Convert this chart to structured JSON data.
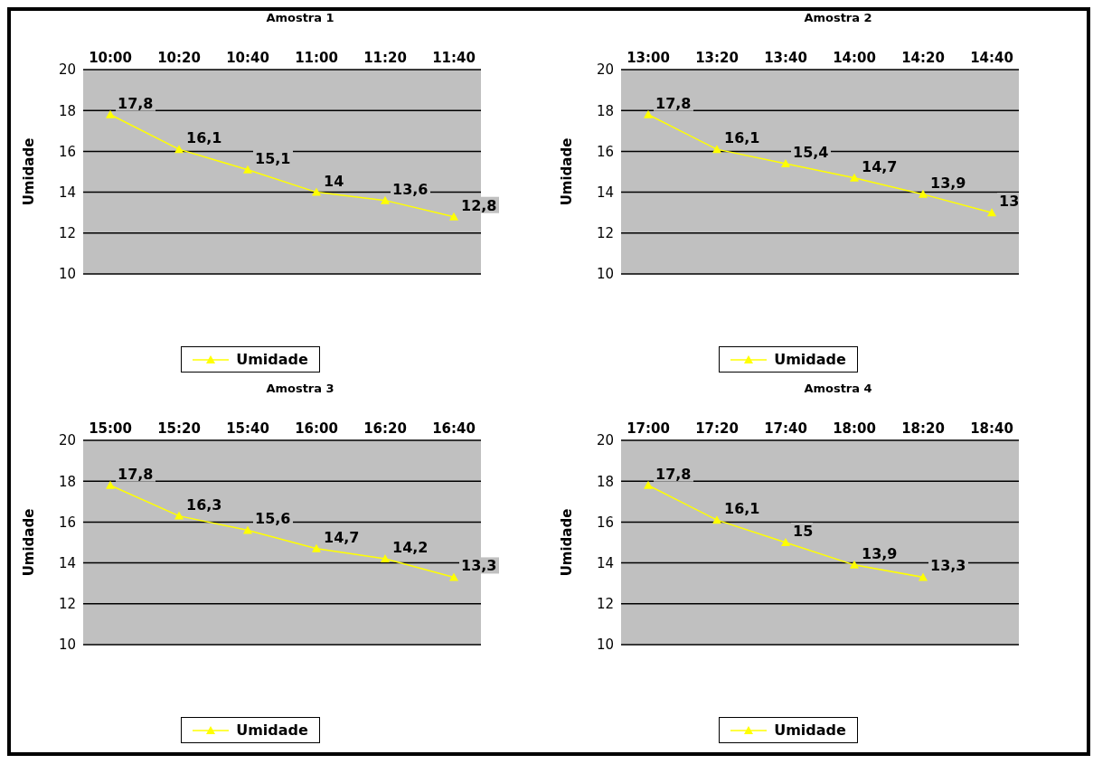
{
  "chart_data": [
    {
      "type": "line",
      "title": "Amostra 1",
      "ylabel": "Umidade",
      "categories": [
        "10:00",
        "10:20",
        "10:40",
        "11:00",
        "11:20",
        "11:40"
      ],
      "series": [
        {
          "name": "Umidade",
          "color": "#ffff00",
          "values": [
            17.8,
            16.1,
            15.1,
            14,
            13.6,
            12.8
          ],
          "value_labels": [
            "17,8",
            "16,1",
            "15,1",
            "14",
            "13,6",
            "12,8"
          ]
        }
      ],
      "ylim": [
        10,
        20
      ],
      "yticks": [
        10,
        12,
        14,
        16,
        18,
        20
      ],
      "grid": "y",
      "legend": "bottom",
      "marker": "triangle"
    },
    {
      "type": "line",
      "title": "Amostra 2",
      "ylabel": "Umidade",
      "categories": [
        "13:00",
        "13:20",
        "13:40",
        "14:00",
        "14:20",
        "14:40"
      ],
      "series": [
        {
          "name": "Umidade",
          "color": "#ffff00",
          "values": [
            17.8,
            16.1,
            15.4,
            14.7,
            13.9,
            13
          ],
          "value_labels": [
            "17,8",
            "16,1",
            "15,4",
            "14,7",
            "13,9",
            "13"
          ]
        }
      ],
      "ylim": [
        10,
        20
      ],
      "yticks": [
        10,
        12,
        14,
        16,
        18,
        20
      ],
      "grid": "y",
      "legend": "bottom",
      "marker": "triangle"
    },
    {
      "type": "line",
      "title": "Amostra 3",
      "ylabel": "Umidade",
      "categories": [
        "15:00",
        "15:20",
        "15:40",
        "16:00",
        "16:20",
        "16:40"
      ],
      "series": [
        {
          "name": "Umidade",
          "color": "#ffff00",
          "values": [
            17.8,
            16.3,
            15.6,
            14.7,
            14.2,
            13.3
          ],
          "value_labels": [
            "17,8",
            "16,3",
            "15,6",
            "14,7",
            "14,2",
            "13,3"
          ]
        }
      ],
      "ylim": [
        10,
        20
      ],
      "yticks": [
        10,
        12,
        14,
        16,
        18,
        20
      ],
      "grid": "y",
      "legend": "bottom",
      "marker": "triangle"
    },
    {
      "type": "line",
      "title": "Amostra 4",
      "ylabel": "Umidade",
      "categories": [
        "17:00",
        "17:20",
        "17:40",
        "18:00",
        "18:20",
        "18:40"
      ],
      "series": [
        {
          "name": "Umidade",
          "color": "#ffff00",
          "values": [
            17.8,
            16.1,
            15,
            13.9,
            13.3,
            null
          ],
          "value_labels": [
            "17,8",
            "16,1",
            "15",
            "13,9",
            "13,3",
            null
          ]
        }
      ],
      "ylim": [
        10,
        20
      ],
      "yticks": [
        10,
        12,
        14,
        16,
        18,
        20
      ],
      "grid": "y",
      "legend": "bottom",
      "marker": "triangle"
    }
  ]
}
